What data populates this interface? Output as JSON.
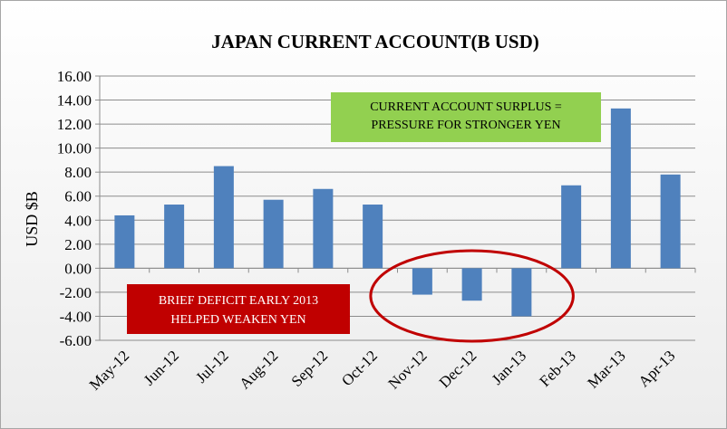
{
  "chart_data": {
    "type": "bar",
    "title": "JAPAN CURRENT ACCOUNT(B USD)",
    "xlabel": "",
    "ylabel": "USD $B",
    "categories": [
      "May-12",
      "Jun-12",
      "Jul-12",
      "Aug-12",
      "Sep-12",
      "Oct-12",
      "Nov-12",
      "Dec-12",
      "Jan-13",
      "Feb-13",
      "Mar-13",
      "Apr-13"
    ],
    "values": [
      4.4,
      5.3,
      8.5,
      5.7,
      6.6,
      5.3,
      -2.2,
      -2.7,
      -4.0,
      6.9,
      13.3,
      7.8
    ],
    "ylim": [
      -6,
      16
    ],
    "yticks": [
      "16.00",
      "14.00",
      "12.00",
      "10.00",
      "8.00",
      "6.00",
      "4.00",
      "2.00",
      "0.00",
      "-2.00",
      "-4.00",
      "-6.00"
    ],
    "grid": true,
    "bar_color": "#4f81bd",
    "annotations": [
      {
        "lines": [
          "CURRENT ACCOUNT SURPLUS  =",
          "PRESSURE FOR STRONGER YEN"
        ],
        "background": "#92d050",
        "text_color": "#000000"
      },
      {
        "lines": [
          "BRIEF DEFICIT EARLY 2013",
          "HELPED WEAKEN YEN"
        ],
        "background": "#c00000",
        "text_color": "#ffffff"
      }
    ],
    "highlight": {
      "shape": "ellipse",
      "color": "#c00000",
      "categories": [
        "Nov-12",
        "Dec-12",
        "Jan-13"
      ]
    }
  }
}
